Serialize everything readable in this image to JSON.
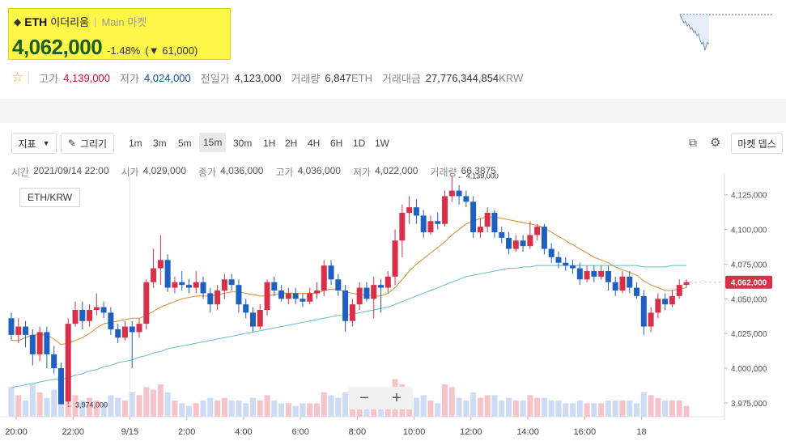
{
  "header": {
    "symbol": "ETH",
    "korean_name": "이더리움",
    "market_label": "Main 마켓",
    "price": "4,062,000",
    "change_percent": "-1.48%",
    "change_amount": "61,000",
    "change_arrow": "▼"
  },
  "stats": {
    "high_label": "고가",
    "high": "4,139,000",
    "low_label": "저가",
    "low": "4,024,000",
    "prev_close_label": "전일가",
    "prev_close": "4,123,000",
    "volume_label": "거래량",
    "volume": "6,847",
    "volume_unit": "ETH",
    "turnover_label": "거래대금",
    "turnover": "27,776,344,854",
    "turnover_unit": "KRW"
  },
  "toolbar": {
    "indicator_label": "지표",
    "draw_label": "그리기",
    "timeframes": [
      "1m",
      "3m",
      "5m",
      "15m",
      "30m",
      "1H",
      "2H",
      "4H",
      "6H",
      "1D",
      "1W"
    ],
    "active_timeframe": "15m",
    "market_depth_label": "마켓 뎁스"
  },
  "ohlc": {
    "time_label": "시간",
    "time": "2021/09/14 22:00",
    "open_label": "시가",
    "open": "4,029,000",
    "close_label": "종가",
    "close": "4,036,000",
    "high_label": "고가",
    "high": "4,036,000",
    "low_label": "저가",
    "low": "4,022,000",
    "volume_label": "거래량",
    "volume": "66.3875"
  },
  "pair_label": "ETH/KRW",
  "zoom": {
    "minus": "−",
    "plus": "+"
  },
  "colors": {
    "up": "#d9304a",
    "down": "#1f5fbf",
    "ma_short": "#d88b2b",
    "ma_long": "#5fbcc9",
    "price_tag": "#d9304a"
  },
  "chart_data": {
    "type": "candlestick",
    "ylim": [
      3965000,
      4140000
    ],
    "yticks": [
      "4,125,000",
      "4,100,000",
      "4,075,000",
      "4,050,000",
      "4,025,000",
      "4,000,000",
      "3,975,000"
    ],
    "ytick_values": [
      4125000,
      4100000,
      4075000,
      4050000,
      4025000,
      4000000,
      3975000
    ],
    "xticks": [
      "20:00",
      "22:00",
      "9/15",
      "2:00",
      "4:00",
      "6:00",
      "8:00",
      "10:00",
      "12:00",
      "14:00",
      "16:00",
      "18"
    ],
    "current_price_label": "4,062,000",
    "current_price": 4062000,
    "high_annotation": "← 4,139,000",
    "high_value": 4139000,
    "low_annotation": "← 3,974,000",
    "low_value": 3974000,
    "candles": [
      [
        4036000,
        4024000,
        4040000,
        4020000,
        55
      ],
      [
        4024000,
        4030000,
        4036000,
        4018000,
        40
      ],
      [
        4030000,
        4024000,
        4034000,
        4015000,
        30
      ],
      [
        4024000,
        4010000,
        4028000,
        4002000,
        60
      ],
      [
        4010000,
        4026000,
        4030000,
        4005000,
        45
      ],
      [
        4026000,
        4010000,
        4030000,
        4000000,
        35
      ],
      [
        4010000,
        4000000,
        4016000,
        3996000,
        50
      ],
      [
        4000000,
        3974000,
        4004000,
        3974000,
        90
      ],
      [
        3976000,
        4032000,
        4036000,
        3974000,
        80
      ],
      [
        4032000,
        4042000,
        4048000,
        4030000,
        40
      ],
      [
        4042000,
        4034000,
        4048000,
        4028000,
        30
      ],
      [
        4034000,
        4042000,
        4046000,
        4030000,
        35
      ],
      [
        4042000,
        4044000,
        4054000,
        4038000,
        30
      ],
      [
        4044000,
        4040000,
        4048000,
        4036000,
        25
      ],
      [
        4040000,
        4028000,
        4044000,
        4024000,
        40
      ],
      [
        4028000,
        4022000,
        4032000,
        4018000,
        35
      ],
      [
        4022000,
        4030000,
        4034000,
        4020000,
        30
      ],
      [
        4030000,
        4026000,
        4034000,
        4000000,
        45
      ],
      [
        4026000,
        4032000,
        4036000,
        4022000,
        40
      ],
      [
        4032000,
        4062000,
        4064000,
        4028000,
        55
      ],
      [
        4062000,
        4072000,
        4086000,
        4058000,
        50
      ],
      [
        4072000,
        4078000,
        4096000,
        4060000,
        60
      ],
      [
        4078000,
        4058000,
        4082000,
        4055000,
        45
      ],
      [
        4058000,
        4062000,
        4066000,
        4054000,
        30
      ],
      [
        4062000,
        4060000,
        4070000,
        4056000,
        25
      ],
      [
        4060000,
        4058000,
        4064000,
        4054000,
        20
      ],
      [
        4058000,
        4062000,
        4070000,
        4054000,
        25
      ],
      [
        4062000,
        4054000,
        4066000,
        4050000,
        30
      ],
      [
        4054000,
        4046000,
        4058000,
        4040000,
        35
      ],
      [
        4046000,
        4056000,
        4060000,
        4042000,
        30
      ],
      [
        4056000,
        4064000,
        4068000,
        4050000,
        35
      ],
      [
        4064000,
        4060000,
        4068000,
        4056000,
        30
      ],
      [
        4060000,
        4046000,
        4064000,
        4040000,
        30
      ],
      [
        4046000,
        4040000,
        4050000,
        4036000,
        25
      ],
      [
        4040000,
        4030000,
        4044000,
        4026000,
        35
      ],
      [
        4030000,
        4042000,
        4046000,
        4028000,
        30
      ],
      [
        4042000,
        4062000,
        4064000,
        4038000,
        40
      ],
      [
        4062000,
        4056000,
        4066000,
        4052000,
        30
      ],
      [
        4056000,
        4050000,
        4060000,
        4048000,
        25
      ],
      [
        4050000,
        4054000,
        4058000,
        4046000,
        25
      ],
      [
        4054000,
        4050000,
        4058000,
        4046000,
        20
      ],
      [
        4050000,
        4048000,
        4054000,
        4044000,
        25
      ],
      [
        4048000,
        4054000,
        4058000,
        4046000,
        25
      ],
      [
        4054000,
        4056000,
        4062000,
        4050000,
        25
      ],
      [
        4056000,
        4074000,
        4078000,
        4052000,
        45
      ],
      [
        4074000,
        4064000,
        4078000,
        4060000,
        40
      ],
      [
        4064000,
        4056000,
        4068000,
        4052000,
        35
      ],
      [
        4056000,
        4034000,
        4060000,
        4026000,
        45
      ],
      [
        4034000,
        4046000,
        4050000,
        4030000,
        40
      ],
      [
        4046000,
        4058000,
        4062000,
        4042000,
        35
      ],
      [
        4058000,
        4050000,
        4062000,
        4048000,
        30
      ],
      [
        4050000,
        4060000,
        4066000,
        4036000,
        40
      ],
      [
        4060000,
        4058000,
        4064000,
        4040000,
        30
      ],
      [
        4058000,
        4066000,
        4070000,
        4054000,
        30
      ],
      [
        4066000,
        4092000,
        4100000,
        4060000,
        70
      ],
      [
        4092000,
        4112000,
        4118000,
        4080000,
        60
      ],
      [
        4112000,
        4116000,
        4124000,
        4104000,
        40
      ],
      [
        4116000,
        4110000,
        4122000,
        4104000,
        35
      ],
      [
        4110000,
        4098000,
        4114000,
        4094000,
        40
      ],
      [
        4098000,
        4106000,
        4110000,
        4096000,
        30
      ],
      [
        4106000,
        4104000,
        4112000,
        4100000,
        25
      ],
      [
        4104000,
        4124000,
        4128000,
        4102000,
        60
      ],
      [
        4124000,
        4128000,
        4139000,
        4120000,
        55
      ],
      [
        4128000,
        4124000,
        4132000,
        4118000,
        35
      ],
      [
        4124000,
        4120000,
        4128000,
        4116000,
        30
      ],
      [
        4120000,
        4098000,
        4124000,
        4094000,
        45
      ],
      [
        4098000,
        4102000,
        4108000,
        4094000,
        35
      ],
      [
        4102000,
        4112000,
        4116000,
        4098000,
        40
      ],
      [
        4112000,
        4098000,
        4114000,
        4094000,
        40
      ],
      [
        4098000,
        4094000,
        4102000,
        4090000,
        30
      ],
      [
        4094000,
        4086000,
        4098000,
        4082000,
        35
      ],
      [
        4086000,
        4092000,
        4096000,
        4084000,
        30
      ],
      [
        4092000,
        4088000,
        4096000,
        4084000,
        30
      ],
      [
        4088000,
        4096000,
        4106000,
        4086000,
        40
      ],
      [
        4096000,
        4102000,
        4104000,
        4092000,
        35
      ],
      [
        4102000,
        4086000,
        4104000,
        4082000,
        35
      ],
      [
        4086000,
        4080000,
        4090000,
        4076000,
        30
      ],
      [
        4080000,
        4076000,
        4084000,
        4072000,
        30
      ],
      [
        4076000,
        4074000,
        4080000,
        4070000,
        25
      ],
      [
        4074000,
        4072000,
        4078000,
        4068000,
        25
      ],
      [
        4072000,
        4064000,
        4076000,
        4060000,
        30
      ],
      [
        4064000,
        4070000,
        4074000,
        4062000,
        25
      ],
      [
        4070000,
        4066000,
        4074000,
        4062000,
        25
      ],
      [
        4066000,
        4070000,
        4074000,
        4064000,
        25
      ],
      [
        4070000,
        4062000,
        4074000,
        4056000,
        30
      ],
      [
        4062000,
        4056000,
        4066000,
        4052000,
        30
      ],
      [
        4056000,
        4066000,
        4070000,
        4054000,
        30
      ],
      [
        4066000,
        4058000,
        4070000,
        4054000,
        30
      ],
      [
        4058000,
        4052000,
        4062000,
        4050000,
        25
      ],
      [
        4052000,
        4030000,
        4056000,
        4024000,
        45
      ],
      [
        4030000,
        4040000,
        4044000,
        4026000,
        40
      ],
      [
        4040000,
        4050000,
        4054000,
        4036000,
        35
      ],
      [
        4050000,
        4046000,
        4054000,
        4042000,
        30
      ],
      [
        4046000,
        4052000,
        4056000,
        4044000,
        30
      ],
      [
        4052000,
        4060000,
        4064000,
        4050000,
        30
      ],
      [
        4060000,
        4062000,
        4064000,
        4058000,
        20
      ]
    ],
    "ma_short": [
      4020000,
      4020000,
      4022000,
      4024000,
      4024000,
      4024000,
      4021000,
      4017000,
      4018000,
      4020000,
      4022000,
      4025000,
      4029000,
      4032000,
      4033000,
      4034000,
      4035000,
      4036000,
      4036000,
      4038000,
      4041000,
      4044000,
      4046000,
      4048000,
      4050000,
      4051000,
      4052000,
      4052000,
      4052000,
      4053000,
      4054000,
      4055000,
      4055000,
      4054000,
      4053000,
      4052000,
      4052000,
      4053000,
      4054000,
      4054000,
      4054000,
      4054000,
      4054000,
      4054000,
      4056000,
      4057000,
      4057000,
      4055000,
      4054000,
      4053000,
      4053000,
      4052000,
      4052000,
      4054000,
      4058000,
      4064000,
      4070000,
      4075000,
      4079000,
      4083000,
      4087000,
      4091000,
      4096000,
      4100000,
      4104000,
      4106000,
      4108000,
      4109000,
      4109000,
      4108000,
      4107000,
      4106000,
      4105000,
      4104000,
      4103000,
      4101000,
      4098000,
      4095000,
      4092000,
      4089000,
      4086000,
      4083000,
      4080000,
      4078000,
      4076000,
      4073000,
      4071000,
      4069000,
      4067000,
      4063000,
      4060000,
      4058000,
      4056000,
      4056000,
      4057000,
      4058000
    ],
    "ma_long": [
      3986000,
      3987000,
      3988000,
      3989000,
      3990000,
      3991000,
      3992000,
      3992000,
      3993000,
      3995000,
      3996000,
      3998000,
      3999000,
      4001000,
      4002000,
      4004000,
      4005000,
      4006000,
      4008000,
      4009000,
      4011000,
      4012000,
      4014000,
      4015000,
      4016000,
      4017000,
      4018000,
      4019000,
      4020000,
      4021000,
      4022000,
      4023000,
      4024000,
      4025000,
      4026000,
      4027000,
      4028000,
      4029000,
      4030000,
      4031000,
      4032000,
      4033000,
      4034000,
      4035000,
      4036000,
      4037000,
      4038000,
      4038000,
      4039000,
      4040000,
      4041000,
      4042000,
      4043000,
      4044000,
      4046000,
      4048000,
      4050000,
      4052000,
      4054000,
      4056000,
      4058000,
      4060000,
      4062000,
      4064000,
      4066000,
      4067000,
      4068000,
      4069000,
      4070000,
      4071000,
      4072000,
      4072000,
      4073000,
      4073000,
      4074000,
      4074000,
      4074000,
      4074000,
      4074000,
      4074000,
      4074000,
      4074000,
      4074000,
      4074000,
      4074000,
      4074000,
      4074000,
      4074000,
      4074000,
      4073000,
      4073000,
      4073000,
      4073000,
      4074000,
      4074000,
      4074000
    ]
  }
}
